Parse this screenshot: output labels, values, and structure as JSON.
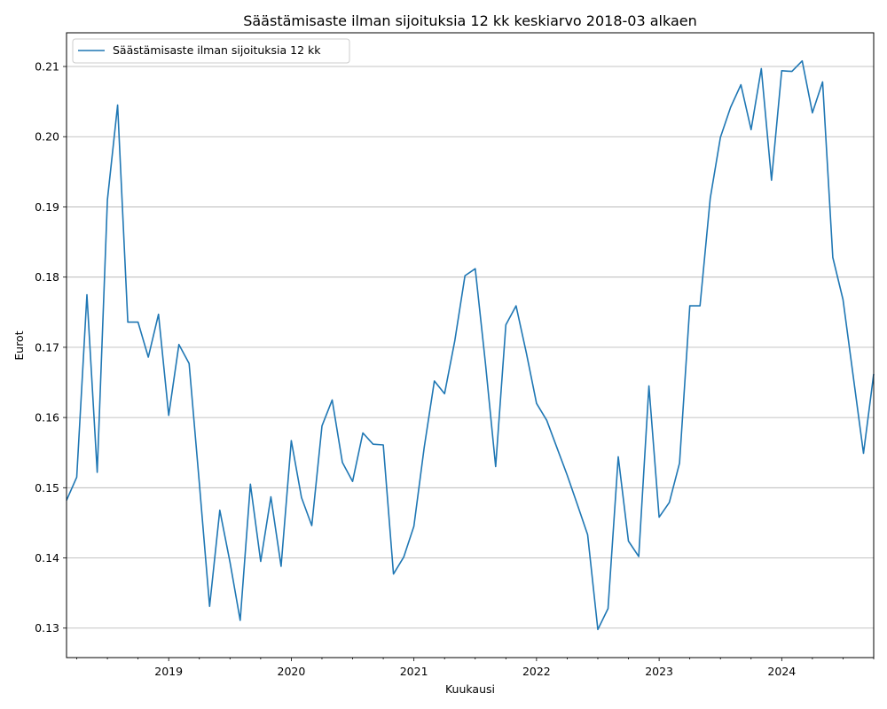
{
  "chart_data": {
    "type": "line",
    "title": "Säästämisaste ilman sijoituksia 12 kk keskiarvo 2018-03 alkaen",
    "xlabel": "Kuukausi",
    "ylabel": "Eurot",
    "x_start": "2018-03",
    "x_end": "2024-10",
    "x_ticks": [
      "2019",
      "2020",
      "2021",
      "2022",
      "2023",
      "2024"
    ],
    "y_ticks": [
      "0.13",
      "0.14",
      "0.15",
      "0.16",
      "0.17",
      "0.18",
      "0.19",
      "0.20",
      "0.21"
    ],
    "ylim": [
      0.1258,
      0.2148
    ],
    "grid": "horizontal",
    "legend_position": "top-left",
    "line_color": "#1f77b4",
    "series": [
      {
        "name": "Säästämisaste ilman sijoituksia 12 kk",
        "x": [
          "2018-03",
          "2018-04",
          "2018-05",
          "2018-06",
          "2018-07",
          "2018-08",
          "2018-09",
          "2018-10",
          "2018-11",
          "2018-12",
          "2019-01",
          "2019-02",
          "2019-03",
          "2019-04",
          "2019-05",
          "2019-06",
          "2019-07",
          "2019-08",
          "2019-09",
          "2019-10",
          "2019-11",
          "2019-12",
          "2020-01",
          "2020-02",
          "2020-03",
          "2020-04",
          "2020-05",
          "2020-06",
          "2020-07",
          "2020-08",
          "2020-09",
          "2020-10",
          "2020-11",
          "2020-12",
          "2021-01",
          "2021-02",
          "2021-03",
          "2021-04",
          "2021-05",
          "2021-06",
          "2021-07",
          "2021-08",
          "2021-09",
          "2021-10",
          "2021-11",
          "2021-12",
          "2022-01",
          "2022-02",
          "2022-03",
          "2022-04",
          "2022-05",
          "2022-06",
          "2022-07",
          "2022-08",
          "2022-09",
          "2022-10",
          "2022-11",
          "2022-12",
          "2023-01",
          "2023-02",
          "2023-03",
          "2023-04",
          "2023-05",
          "2023-06",
          "2023-07",
          "2023-08",
          "2023-09",
          "2023-10",
          "2023-11",
          "2023-12",
          "2024-01",
          "2024-02",
          "2024-03",
          "2024-04",
          "2024-05",
          "2024-06",
          "2024-07",
          "2024-08",
          "2024-09",
          "2024-10"
        ],
        "values": [
          0.1482,
          0.1515,
          0.1775,
          0.1522,
          0.191,
          0.2045,
          0.1736,
          0.1736,
          0.1686,
          0.1747,
          0.1603,
          0.1704,
          0.1677,
          0.1507,
          0.1331,
          0.1468,
          0.1394,
          0.1311,
          0.1505,
          0.1395,
          0.1487,
          0.1388,
          0.1567,
          0.1486,
          0.1446,
          0.1588,
          0.1625,
          0.1536,
          0.1509,
          0.1578,
          0.1562,
          0.1561,
          0.1377,
          0.1401,
          0.1445,
          0.1557,
          0.1652,
          0.1634,
          0.1709,
          0.1802,
          0.1812,
          0.1677,
          0.153,
          0.1732,
          0.1759,
          0.1692,
          0.162,
          0.1596,
          0.1557,
          0.1518,
          0.1476,
          0.1433,
          0.1298,
          0.1328,
          0.1544,
          0.1424,
          0.1402,
          0.1645,
          0.1458,
          0.1479,
          0.1535,
          0.1759,
          0.1759,
          0.1912,
          0.1999,
          0.2042,
          0.2074,
          0.201,
          0.2097,
          0.1938,
          0.2094,
          0.2093,
          0.2108,
          0.2034,
          0.2078,
          0.1828,
          0.1768,
          0.1658,
          0.1549,
          0.1662
        ]
      }
    ]
  }
}
